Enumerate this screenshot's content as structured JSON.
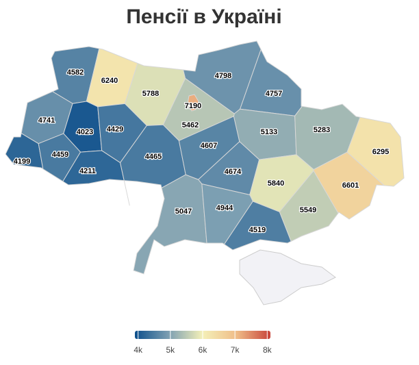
{
  "chart_data": {
    "type": "choropleth",
    "title": "Пенсії в Україні",
    "values": [
      4582,
      6240,
      5788,
      7190,
      5462,
      4798,
      4757,
      4741,
      4023,
      4429,
      4199,
      4459,
      4211,
      4465,
      4607,
      5133,
      5283,
      6295,
      4674,
      5840,
      6601,
      5047,
      4944,
      5549,
      4519
    ],
    "colors": [
      "#0d4f8b",
      "#7d9fb2",
      "#f4f0b8",
      "#efbd88",
      "#c8443a"
    ],
    "colorlim": [
      3900,
      8100
    ],
    "colorticks": [
      {
        "value": 4000,
        "label": "4k"
      },
      {
        "value": 5000,
        "label": "5k"
      },
      {
        "value": 6000,
        "label": "6k"
      },
      {
        "value": 7000,
        "label": "7k"
      },
      {
        "value": 8000,
        "label": "8k"
      }
    ]
  }
}
